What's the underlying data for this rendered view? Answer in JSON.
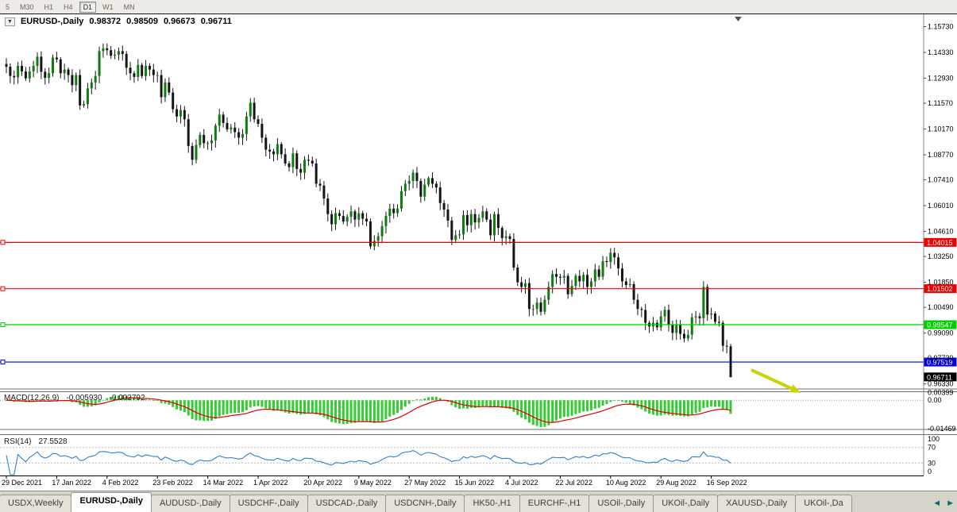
{
  "toolbar": {
    "timeframes": [
      "5",
      "M30",
      "H1",
      "H4",
      "D1",
      "W1",
      "MN"
    ],
    "active": "D1"
  },
  "chart_title": {
    "dropdown_icon": "▼",
    "symbol": "EURUSD-,Daily",
    "open": "0.98372",
    "high": "0.98509",
    "low": "0.96673",
    "close": "0.96711"
  },
  "price_axis": {
    "labels": [
      "1.15730",
      "1.14330",
      "1.12930",
      "1.11570",
      "1.10170",
      "1.08770",
      "1.07410",
      "1.06010",
      "1.04610",
      "1.03250",
      "1.01850",
      "1.00490",
      "0.99090",
      "0.97730",
      "0.96330"
    ]
  },
  "hlines": [
    {
      "price": 1.04015,
      "label": "1.04015",
      "color": "#f00000"
    },
    {
      "price": 1.01502,
      "label": "1.01502",
      "color": "#f00000"
    },
    {
      "price": 0.99547,
      "label": "0.99547",
      "color": "#00d000"
    },
    {
      "price": 0.97519,
      "label": "0.97519",
      "color": "#0000e0"
    }
  ],
  "current_price": {
    "label": "0.96711",
    "price": 0.96711,
    "color": "#000000"
  },
  "indicators": {
    "macd": {
      "name": "MACD(12,26,9)",
      "value_main": "-0.005930",
      "value_signal": "-0.002792",
      "axis": [
        "0.00399",
        "0.00",
        "-0.01469"
      ],
      "histogram_color": "#33cc33",
      "signal_color": "#e00000"
    },
    "rsi": {
      "name": "RSI(14)",
      "value": "27.5528",
      "axis": [
        "100",
        "70",
        "30",
        "0"
      ],
      "levels": [
        70,
        30
      ],
      "line_color": "#3080d0"
    }
  },
  "chart_data": {
    "type": "candlestick",
    "symbol": "EURUSD-",
    "timeframe": "Daily",
    "price_range": {
      "top": 1.164,
      "bottom": 0.961
    },
    "tick_interval": 13,
    "x_tick_labels": [
      "29 Dec 2021",
      "17 Jan 2022",
      "4 Feb 2022",
      "23 Feb 2022",
      "14 Mar 2022",
      "1 Apr 2022",
      "20 Apr 2022",
      "9 May 2022",
      "27 May 2022",
      "15 Jun 2022",
      "4 Jul 2022",
      "22 Jul 2022",
      "10 Aug 2022",
      "29 Aug 2022",
      "16 Sep 2022"
    ],
    "closes": [
      1.1355,
      1.1305,
      1.1298,
      1.136,
      1.133,
      1.1292,
      1.133,
      1.136,
      1.141,
      1.1328,
      1.1295,
      1.132,
      1.1405,
      1.1395,
      1.132,
      1.134,
      1.131,
      1.1255,
      1.131,
      1.1145,
      1.1152,
      1.1238,
      1.127,
      1.1305,
      1.144,
      1.1455,
      1.1445,
      1.1415,
      1.142,
      1.144,
      1.1425,
      1.135,
      1.132,
      1.13,
      1.1365,
      1.1305,
      1.136,
      1.134,
      1.131,
      1.131,
      1.119,
      1.127,
      1.1215,
      1.1125,
      1.1085,
      1.112,
      1.107,
      1.0925,
      1.085,
      1.093,
      1.0985,
      1.094,
      1.094,
      1.0955,
      1.1035,
      1.1095,
      1.105,
      1.1015,
      1.1025,
      1.1,
      1.097,
      1.099,
      1.1085,
      1.116,
      1.107,
      1.1045,
      1.097,
      1.0905,
      1.0895,
      1.088,
      1.0935,
      1.088,
      1.083,
      1.081,
      1.0885,
      1.08,
      1.078,
      1.085,
      1.0845,
      1.083,
      1.072,
      1.071,
      1.064,
      1.0555,
      1.05,
      1.056,
      1.0545,
      1.0515,
      1.054,
      1.057,
      1.0525,
      1.056,
      1.053,
      1.0515,
      1.038,
      1.041,
      1.0435,
      1.049,
      1.0545,
      1.0585,
      1.056,
      1.0585,
      1.068,
      1.072,
      1.0735,
      1.078,
      1.0735,
      1.065,
      1.0715,
      1.075,
      1.072,
      1.07,
      1.0615,
      1.058,
      1.052,
      1.0415,
      1.044,
      1.0445,
      1.055,
      1.0495,
      1.0555,
      1.051,
      1.0535,
      1.057,
      1.0525,
      1.044,
      1.0555,
      1.048,
      1.0425,
      1.0435,
      1.042,
      1.0265,
      1.0185,
      1.016,
      1.018,
      1.004,
      1.004,
      1.0075,
      1.0025,
      1.009,
      1.016,
      1.023,
      1.0215,
      1.021,
      1.022,
      1.012,
      1.0165,
      1.022,
      1.019,
      1.0225,
      1.016,
      1.019,
      1.0255,
      1.0215,
      1.03,
      1.0295,
      1.0345,
      1.032,
      1.026,
      1.019,
      1.017,
      1.0175,
      1.009,
      1.004,
      1.0035,
      0.9965,
      0.9945,
      0.9965,
      0.994,
      1.0,
      1.0035,
      0.9955,
      0.991,
      0.9955,
      0.9905,
      0.988,
      0.99,
      0.9995,
      1.0,
      0.999,
      1.016,
      1.001,
      1.0015,
      0.997,
      0.9965,
      0.984,
      0.98372,
      0.96711
    ],
    "colors": {
      "up": "#0e7c0e",
      "down": "#151515",
      "wick": "#151515"
    }
  },
  "annotations": {
    "arrow_color": "#c9d403",
    "scroll_marker": "▼"
  },
  "tabs": {
    "scroll_left": "◄",
    "scroll_right": "►",
    "items": [
      {
        "label": "USDX,Weekly"
      },
      {
        "label": "EURUSD-,Daily"
      },
      {
        "label": "AUDUSD-,Daily"
      },
      {
        "label": "USDCHF-,Daily"
      },
      {
        "label": "USDCAD-,Daily"
      },
      {
        "label": "USDCNH-,Daily"
      },
      {
        "label": "HK50-,H1"
      },
      {
        "label": "EURCHF-,H1"
      },
      {
        "label": "USOil-,Daily"
      },
      {
        "label": "UKOil-,Daily"
      },
      {
        "label": "XAUUSD-,Daily"
      },
      {
        "label": "UKOil-,Da"
      }
    ],
    "active_index": 1
  }
}
